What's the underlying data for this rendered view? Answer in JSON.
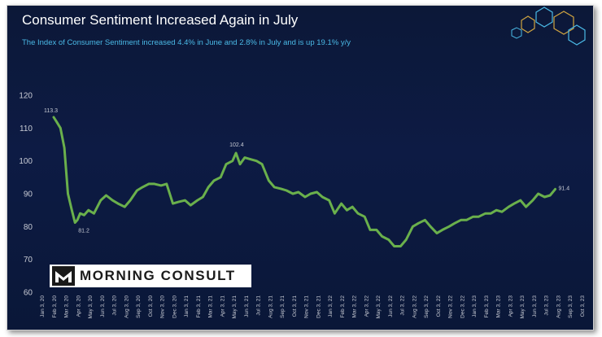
{
  "title": "Consumer Sentiment Increased Again in July",
  "subtitle": "The Index of Consumer Sentiment increased 4.4% in June and 2.8% in July and is up 19.1% y/y",
  "brand": {
    "logo_text": "MORNING CONSULT",
    "logo_icon": "morning-consult-logo-icon"
  },
  "colors": {
    "background": "#0d1b44",
    "line": "#6ab04c",
    "subtitle": "#4ab9e6",
    "axis_text": "#c8cbd4"
  },
  "chart_data": {
    "type": "line",
    "title": "Consumer Sentiment Increased Again in July",
    "subtitle": "The Index of Consumer Sentiment increased 4.4% in June and 2.8% in July and is up 19.1% y/y",
    "xlabel": "",
    "ylabel": "",
    "ylim": [
      60,
      120
    ],
    "yticks": [
      60,
      70,
      80,
      90,
      100,
      110,
      120
    ],
    "grid": false,
    "legend": "none",
    "xtick_labels": [
      "Jan 3, 20",
      "Feb 3, 20",
      "Mar 3, 20",
      "Apr 3, 20",
      "May 3, 20",
      "Jun 3, 20",
      "Jul 3, 20",
      "Aug 3, 20",
      "Sep 3, 20",
      "Oct 3, 20",
      "Nov 3, 20",
      "Dec 3, 20",
      "Jan 3, 21",
      "Feb 3, 21",
      "Mar 3, 21",
      "Apr 3, 21",
      "May 3, 21",
      "Jun 3, 21",
      "Jul 3, 21",
      "Aug 3, 21",
      "Sep 3, 21",
      "Oct 3, 21",
      "Nov 3, 21",
      "Dec 3, 21",
      "Jan 3, 22",
      "Feb 3, 22",
      "Mar 3, 22",
      "Apr 3, 22",
      "May 3, 22",
      "Jun 3, 22",
      "Jul 3, 22",
      "Aug 3, 22",
      "Sep 3, 22",
      "Oct 3, 22",
      "Nov 3, 22",
      "Dec 3, 22",
      "Jan 3, 23",
      "Feb 3, 23",
      "Mar 3, 23",
      "Apr 3, 23",
      "May 3, 23",
      "Jun 3, 23",
      "Jul 3, 23",
      "Aug 3, 23",
      "Sep 3, 23",
      "Oct 3, 23"
    ],
    "series": [
      {
        "x": [
          "2020-02-03",
          "2020-02-10",
          "2020-02-20",
          "2020-03-01",
          "2020-03-10",
          "2020-03-20",
          "2020-03-28",
          "2020-04-03",
          "2020-04-10",
          "2020-04-20",
          "2020-05-01",
          "2020-05-15",
          "2020-06-01",
          "2020-06-15",
          "2020-07-01",
          "2020-07-15",
          "2020-08-01",
          "2020-08-15",
          "2020-09-01",
          "2020-09-15",
          "2020-10-01",
          "2020-10-15",
          "2020-11-01",
          "2020-11-15",
          "2020-12-01",
          "2020-12-15",
          "2021-01-01",
          "2021-01-15",
          "2021-02-01",
          "2021-02-15",
          "2021-03-01",
          "2021-03-15",
          "2021-04-01",
          "2021-04-15",
          "2021-05-01",
          "2021-05-10",
          "2021-05-20",
          "2021-06-01",
          "2021-06-15",
          "2021-07-01",
          "2021-07-15",
          "2021-08-01",
          "2021-08-15",
          "2021-09-01",
          "2021-09-15",
          "2021-10-01",
          "2021-10-15",
          "2021-11-01",
          "2021-11-15",
          "2021-12-01",
          "2021-12-15",
          "2022-01-01",
          "2022-01-15",
          "2022-02-01",
          "2022-02-15",
          "2022-03-01",
          "2022-03-15",
          "2022-04-01",
          "2022-04-15",
          "2022-05-01",
          "2022-05-15",
          "2022-06-01",
          "2022-06-15",
          "2022-07-01",
          "2022-07-15",
          "2022-08-01",
          "2022-08-15",
          "2022-09-01",
          "2022-09-15",
          "2022-10-01",
          "2022-10-15",
          "2022-11-01",
          "2022-11-15",
          "2022-12-01",
          "2022-12-15",
          "2023-01-01",
          "2023-01-15",
          "2023-02-01",
          "2023-02-15",
          "2023-03-01",
          "2023-03-15",
          "2023-04-01",
          "2023-04-15",
          "2023-05-01",
          "2023-05-15",
          "2023-06-01",
          "2023-06-15",
          "2023-07-01",
          "2023-07-15",
          "2023-07-28"
        ],
        "values": [
          113.3,
          112,
          110,
          104,
          90,
          85,
          81.2,
          82,
          84,
          83.5,
          85,
          84,
          88,
          89.5,
          88,
          87,
          86,
          88,
          91,
          92,
          93,
          93,
          92.5,
          93,
          87,
          87.5,
          88,
          86.5,
          88,
          89,
          92,
          94,
          95,
          99,
          100,
          102.4,
          99,
          101,
          100.5,
          100,
          99,
          94,
          92,
          91.5,
          91,
          90,
          90.5,
          89,
          90,
          90.5,
          89,
          88,
          84,
          87,
          85,
          86,
          84,
          83,
          79,
          79,
          77,
          76,
          74,
          74,
          76,
          80,
          81,
          82,
          80,
          78,
          79,
          80,
          81,
          82,
          82,
          83,
          83,
          84,
          84,
          85,
          84.5,
          86,
          87,
          88,
          86,
          88,
          90,
          89,
          89.5,
          91.4
        ]
      }
    ],
    "annotations": [
      {
        "x": "2020-02-03",
        "y": 113.3,
        "text": "113.3"
      },
      {
        "x": "2020-03-28",
        "y": 81.2,
        "text": "81.2"
      },
      {
        "x": "2021-05-10",
        "y": 102.4,
        "text": "102.4"
      },
      {
        "x": "2023-07-28",
        "y": 91.4,
        "text": "91.4"
      }
    ]
  }
}
